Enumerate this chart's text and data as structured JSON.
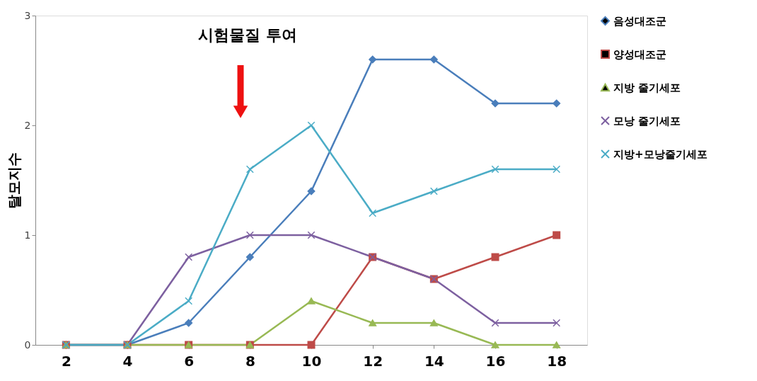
{
  "chart_data": {
    "type": "line",
    "ylabel": "탈모지수",
    "categories": [
      "2",
      "4",
      "6",
      "8",
      "10",
      "12",
      "14",
      "16",
      "18"
    ],
    "series": [
      {
        "name": "음성대조군",
        "color": "#4a7ebb",
        "marker": "diamond",
        "values": [
          0,
          0,
          0.2,
          0.8,
          1.4,
          2.6,
          2.6,
          2.2,
          2.2
        ]
      },
      {
        "name": "양성대조군",
        "color": "#be4b48",
        "marker": "square",
        "values": [
          0,
          0,
          0,
          0,
          0,
          0.8,
          0.6,
          0.8,
          1.0
        ]
      },
      {
        "name": "지방 줄기세포",
        "color": "#98b954",
        "marker": "triangle",
        "values": [
          0,
          0,
          0,
          0,
          0.4,
          0.2,
          0.2,
          0,
          0
        ]
      },
      {
        "name": "모낭 줄기세포",
        "color": "#7d60a0",
        "marker": "cross",
        "values": [
          0,
          0,
          0.8,
          1.0,
          1.0,
          0.8,
          0.6,
          0.2,
          0.2
        ]
      },
      {
        "name": "지방+모낭줄기세포",
        "color": "#4bacc6",
        "marker": "cross",
        "values": [
          0,
          0,
          0.4,
          1.6,
          2.0,
          1.2,
          1.4,
          1.6,
          1.6
        ]
      }
    ],
    "ylim": [
      0,
      3
    ],
    "yticks": [
      0,
      1,
      2,
      3
    ],
    "grid": false,
    "legend": "right",
    "annotations": [
      "시험물질 투여"
    ]
  }
}
